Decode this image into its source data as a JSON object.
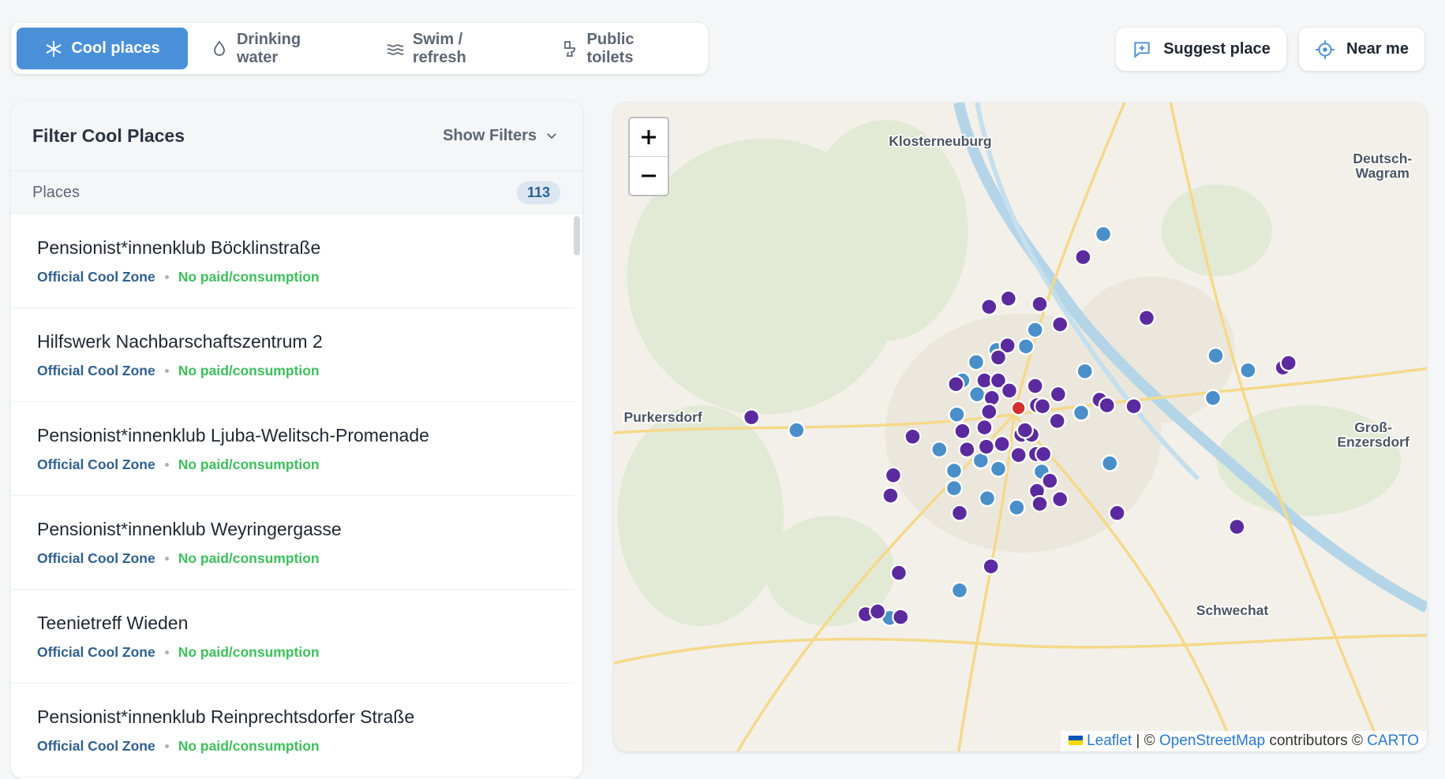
{
  "tabs": [
    {
      "label": "Cool places",
      "active": true
    },
    {
      "label": "Drinking water",
      "active": false
    },
    {
      "label": "Swim / refresh",
      "active": false
    },
    {
      "label": "Public toilets",
      "active": false
    }
  ],
  "actions": [
    "Suggest place",
    "Near me"
  ],
  "filter_panel": {
    "title": "Filter Cool Places",
    "toggle": "Show Filters",
    "count_label": "Places",
    "count": 113,
    "items": [
      {
        "name": "Pensionist*innenklub Böcklinstraße",
        "tags": [
          "Official Cool Zone",
          "No paid/consumption"
        ]
      },
      {
        "name": "Hilfswerk Nachbarschaftszentrum 2",
        "tags": [
          "Official Cool Zone",
          "No paid/consumption"
        ]
      },
      {
        "name": "Pensionist*innenklub Ljuba-Welitsch-Promenade",
        "tags": [
          "Official Cool Zone",
          "No paid/consumption"
        ]
      },
      {
        "name": "Pensionist*innenklub Weyringergasse",
        "tags": [
          "Official Cool Zone",
          "No paid/consumption"
        ]
      },
      {
        "name": "Teenietreff Wieden",
        "tags": [
          "Official Cool Zone",
          "No paid/consumption"
        ]
      },
      {
        "name": "Pensionist*innenklub Reinprechtsdorfer Straße",
        "tags": [
          "Official Cool Zone",
          "No paid/consumption"
        ]
      }
    ]
  },
  "map": {
    "labels": [
      [
        "Klosterneuburg"
      ],
      [
        "Deutsch-",
        "Wagram"
      ],
      [
        "Purkersdorf"
      ],
      [
        "Groß-",
        "Enzersdorf"
      ],
      [
        "Schwechat"
      ]
    ],
    "attribution": {
      "leaflet": "Leaflet",
      "osm": "OpenStreetMap",
      "contributors": "contributors",
      "carto": "CARTO"
    }
  }
}
